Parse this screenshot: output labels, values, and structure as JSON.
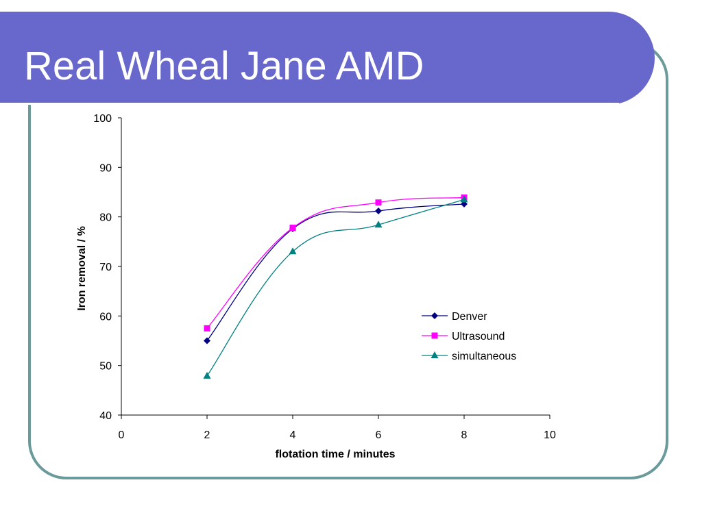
{
  "slide": {
    "title": "Real Wheal Jane AMD"
  },
  "chart_data": {
    "type": "line",
    "smoothed": true,
    "xlabel": "flotation time / minutes",
    "ylabel": "Iron removal / %",
    "xlim": [
      0,
      10
    ],
    "ylim": [
      40,
      100
    ],
    "xticks": [
      0,
      2,
      4,
      6,
      8,
      10
    ],
    "yticks": [
      40,
      50,
      60,
      70,
      80,
      90,
      100
    ],
    "grid": false,
    "legend": "right",
    "x": [
      2,
      4,
      6,
      8
    ],
    "series": [
      {
        "name": "Denver",
        "values": [
          55.0,
          77.6,
          81.2,
          82.6
        ],
        "color": "#000080",
        "marker": "diamond"
      },
      {
        "name": "Ultrasound",
        "values": [
          57.5,
          77.8,
          82.9,
          83.9
        ],
        "color": "#ff00ff",
        "marker": "square"
      },
      {
        "name": "simultaneous",
        "values": [
          47.9,
          73.0,
          78.4,
          83.5
        ],
        "color": "#008080",
        "marker": "triangle"
      }
    ]
  }
}
